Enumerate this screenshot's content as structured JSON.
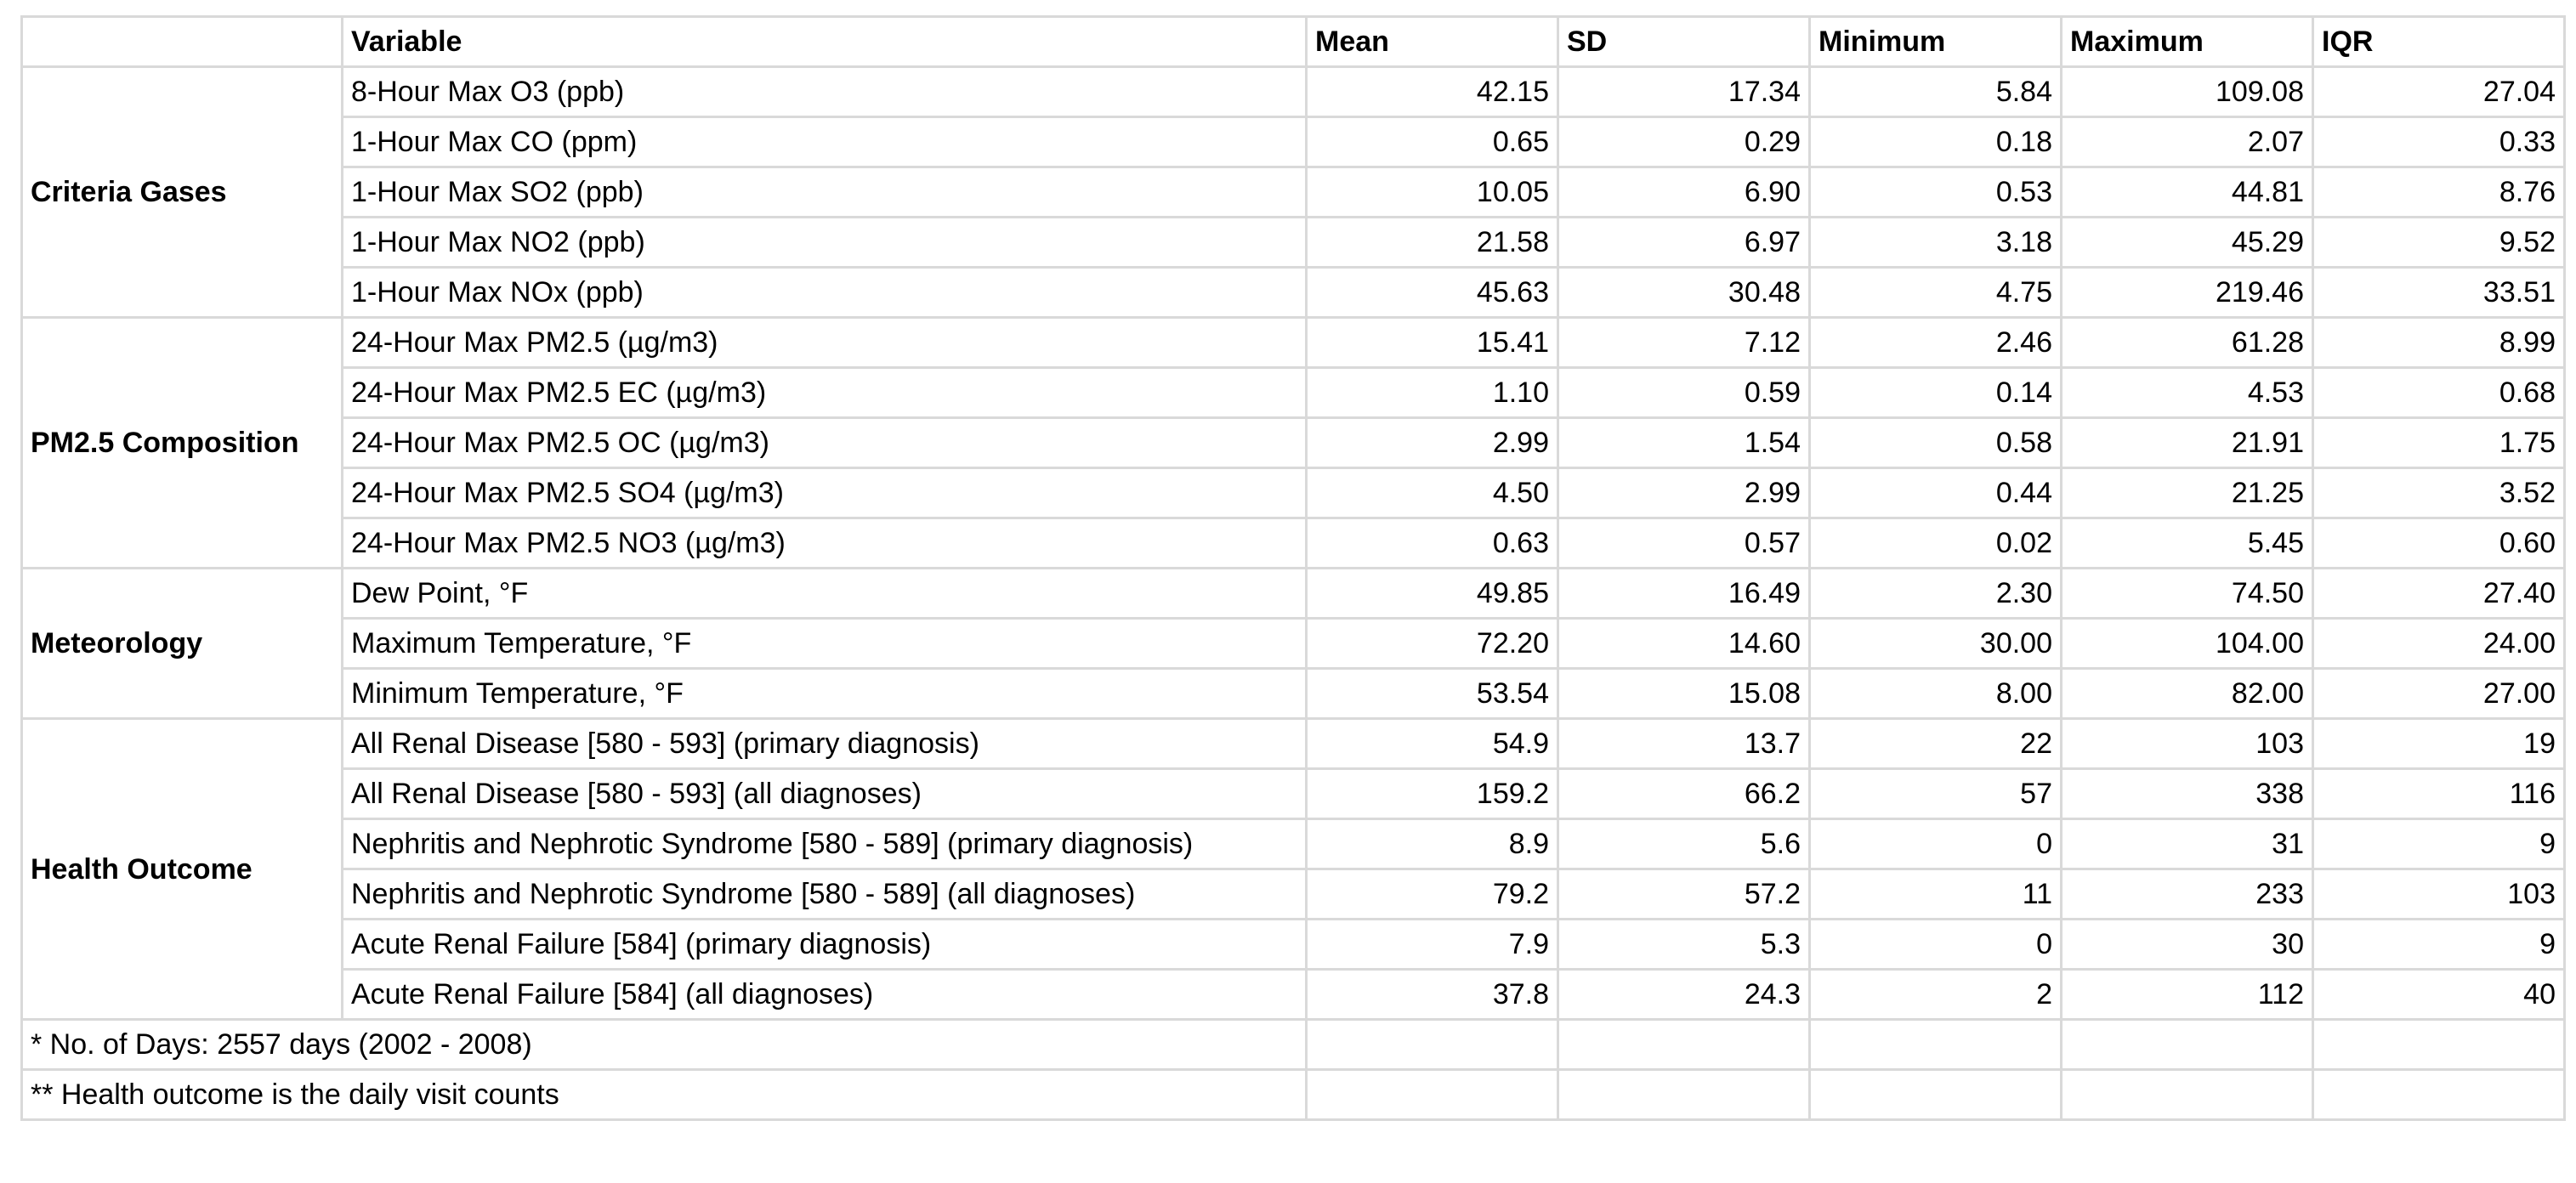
{
  "headers": [
    "",
    "Variable",
    "Mean",
    "SD",
    "Minimum",
    "Maximum",
    "IQR"
  ],
  "groups": [
    {
      "category": "Criteria Gases",
      "rows": [
        {
          "variable": "8-Hour Max O3 (ppb)",
          "mean": "42.15",
          "sd": "17.34",
          "min": "5.84",
          "max": "109.08",
          "iqr": "27.04"
        },
        {
          "variable": "1-Hour Max CO (ppm)",
          "mean": "0.65",
          "sd": "0.29",
          "min": "0.18",
          "max": "2.07",
          "iqr": "0.33"
        },
        {
          "variable": "1-Hour Max SO2 (ppb)",
          "mean": "10.05",
          "sd": "6.90",
          "min": "0.53",
          "max": "44.81",
          "iqr": "8.76"
        },
        {
          "variable": "1-Hour Max NO2 (ppb)",
          "mean": "21.58",
          "sd": "6.97",
          "min": "3.18",
          "max": "45.29",
          "iqr": "9.52"
        },
        {
          "variable": "1-Hour Max NOx (ppb)",
          "mean": "45.63",
          "sd": "30.48",
          "min": "4.75",
          "max": "219.46",
          "iqr": "33.51"
        }
      ]
    },
    {
      "category": "PM2.5 Composition",
      "rows": [
        {
          "variable": "24-Hour Max PM2.5 (µg/m3)",
          "mean": "15.41",
          "sd": "7.12",
          "min": "2.46",
          "max": "61.28",
          "iqr": "8.99"
        },
        {
          "variable": "24-Hour Max PM2.5 EC (µg/m3)",
          "mean": "1.10",
          "sd": "0.59",
          "min": "0.14",
          "max": "4.53",
          "iqr": "0.68"
        },
        {
          "variable": "24-Hour Max PM2.5 OC (µg/m3)",
          "mean": "2.99",
          "sd": "1.54",
          "min": "0.58",
          "max": "21.91",
          "iqr": "1.75"
        },
        {
          "variable": "24-Hour Max PM2.5 SO4 (µg/m3)",
          "mean": "4.50",
          "sd": "2.99",
          "min": "0.44",
          "max": "21.25",
          "iqr": "3.52"
        },
        {
          "variable": "24-Hour Max PM2.5 NO3 (µg/m3)",
          "mean": "0.63",
          "sd": "0.57",
          "min": "0.02",
          "max": "5.45",
          "iqr": "0.60"
        }
      ]
    },
    {
      "category": "Meteorology",
      "rows": [
        {
          "variable": "Dew Point, °F",
          "mean": "49.85",
          "sd": "16.49",
          "min": "2.30",
          "max": "74.50",
          "iqr": "27.40"
        },
        {
          "variable": "Maximum Temperature, °F",
          "mean": "72.20",
          "sd": "14.60",
          "min": "30.00",
          "max": "104.00",
          "iqr": "24.00"
        },
        {
          "variable": "Minimum Temperature, °F",
          "mean": "53.54",
          "sd": "15.08",
          "min": "8.00",
          "max": "82.00",
          "iqr": "27.00"
        }
      ]
    },
    {
      "category": "Health Outcome",
      "rows": [
        {
          "variable": "All Renal Disease [580 - 593] (primary diagnosis)",
          "mean": "54.9",
          "sd": "13.7",
          "min": "22",
          "max": "103",
          "iqr": "19"
        },
        {
          "variable": "All Renal Disease [580 - 593] (all diagnoses)",
          "mean": "159.2",
          "sd": "66.2",
          "min": "57",
          "max": "338",
          "iqr": "116"
        },
        {
          "variable": "Nephritis and Nephrotic Syndrome [580 - 589] (primary diagnosis)",
          "mean": "8.9",
          "sd": "5.6",
          "min": "0",
          "max": "31",
          "iqr": "9"
        },
        {
          "variable": "Nephritis and Nephrotic Syndrome [580 - 589] (all diagnoses)",
          "mean": "79.2",
          "sd": "57.2",
          "min": "11",
          "max": "233",
          "iqr": "103"
        },
        {
          "variable": "Acute Renal Failure [584] (primary diagnosis)",
          "mean": "7.9",
          "sd": "5.3",
          "min": "0",
          "max": "30",
          "iqr": "9"
        },
        {
          "variable": "Acute Renal Failure [584] (all diagnoses)",
          "mean": "37.8",
          "sd": "24.3",
          "min": "2",
          "max": "112",
          "iqr": "40"
        }
      ]
    }
  ],
  "notes": [
    "* No. of Days: 2557 days (2002 - 2008)",
    "** Health outcome is the daily visit counts"
  ]
}
